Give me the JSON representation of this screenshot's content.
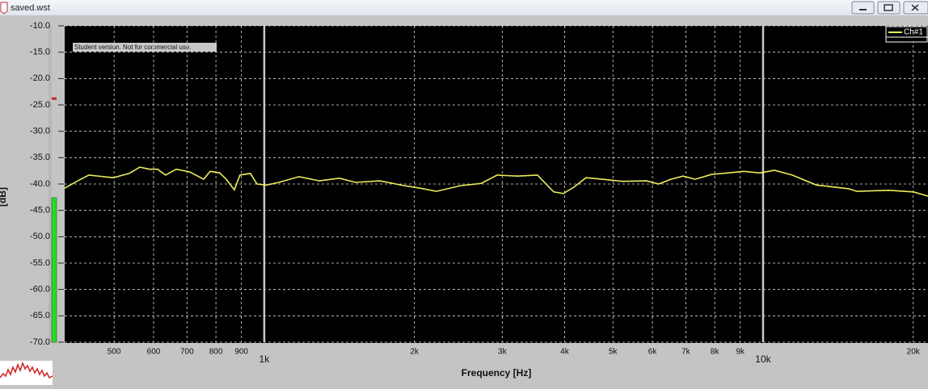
{
  "window": {
    "title": "saved.wst"
  },
  "chart_data": {
    "type": "line",
    "log_x": true,
    "grid": true,
    "legend": "top-right",
    "x_label": "Frequency [Hz]",
    "y_label": "[dB]",
    "annotation": "Student version. Not for commercial use.",
    "xlim": [
      398,
      21410
    ],
    "ylim": [
      -70,
      -10
    ],
    "xticks": [
      500,
      600,
      700,
      800,
      900,
      {
        "value": 1000,
        "label": "1k"
      },
      {
        "value": 2000,
        "label": "2k"
      },
      {
        "value": 3000,
        "label": "3k"
      },
      {
        "value": 4000,
        "label": "4k"
      },
      {
        "value": 5000,
        "label": "5k"
      },
      {
        "value": 6000,
        "label": "6k"
      },
      {
        "value": 7000,
        "label": "7k"
      },
      {
        "value": 8000,
        "label": "8k"
      },
      {
        "value": 9000,
        "label": "9k"
      },
      {
        "value": 10000,
        "label": "10k"
      },
      {
        "value": 20000,
        "label": "20k"
      }
    ],
    "yticks": [
      {
        "value": -10,
        "label": "-10.0"
      },
      {
        "value": -15,
        "label": "-15.0"
      },
      {
        "value": -20,
        "label": "-20.0"
      },
      {
        "value": -25,
        "label": "-25.0"
      },
      {
        "value": -30,
        "label": "-30.0"
      },
      {
        "value": -35,
        "label": "-35.0"
      },
      {
        "value": -40,
        "label": "-40.0"
      },
      {
        "value": -45,
        "label": "-45.0"
      },
      {
        "value": -50,
        "label": "-50.0"
      },
      {
        "value": -55,
        "label": "-55.0"
      },
      {
        "value": -60,
        "label": "-60.0"
      },
      {
        "value": -65,
        "label": "-65.0"
      },
      {
        "value": -70,
        "label": "-70.0"
      }
    ],
    "x": [
      398,
      421,
      445,
      498,
      536,
      563,
      589,
      611,
      634,
      666,
      709,
      756,
      779,
      814,
      839,
      871,
      894,
      938,
      967,
      1011,
      1069,
      1174,
      1289,
      1415,
      1524,
      1705,
      1907,
      2055,
      2214,
      2476,
      2719,
      2930,
      3217,
      3530,
      3804,
      3978,
      4176,
      4416,
      4759,
      5224,
      5842,
      6178,
      6533,
      6909,
      7309,
      7876,
      8486,
      9144,
      9851,
      10536,
      11436,
      12794,
      14853,
      15417,
      17894,
      20017,
      21410
    ],
    "series": [
      {
        "name": "Ch#1",
        "color": "#ecec5a",
        "values": [
          -40.8,
          -39.5,
          -38.3,
          -38.8,
          -38.0,
          -36.8,
          -37.2,
          -37.2,
          -38.3,
          -37.2,
          -37.7,
          -39.1,
          -37.6,
          -37.9,
          -39.1,
          -41.1,
          -38.3,
          -38.0,
          -40.0,
          -40.2,
          -39.7,
          -38.6,
          -39.4,
          -38.9,
          -39.7,
          -39.4,
          -40.3,
          -40.8,
          -41.4,
          -40.3,
          -39.9,
          -38.3,
          -38.5,
          -38.3,
          -41.5,
          -41.8,
          -40.6,
          -38.8,
          -39.1,
          -39.5,
          -39.4,
          -40.0,
          -39.1,
          -38.5,
          -39.1,
          -38.2,
          -37.9,
          -37.6,
          -37.9,
          -37.4,
          -38.3,
          -40.2,
          -40.9,
          -41.4,
          -41.2,
          -41.5,
          -42.3
        ]
      }
    ]
  },
  "level_meter": {
    "level": -42.6,
    "peak": -23.8,
    "color": "#22dd22",
    "peak_color": "#cc2222"
  }
}
